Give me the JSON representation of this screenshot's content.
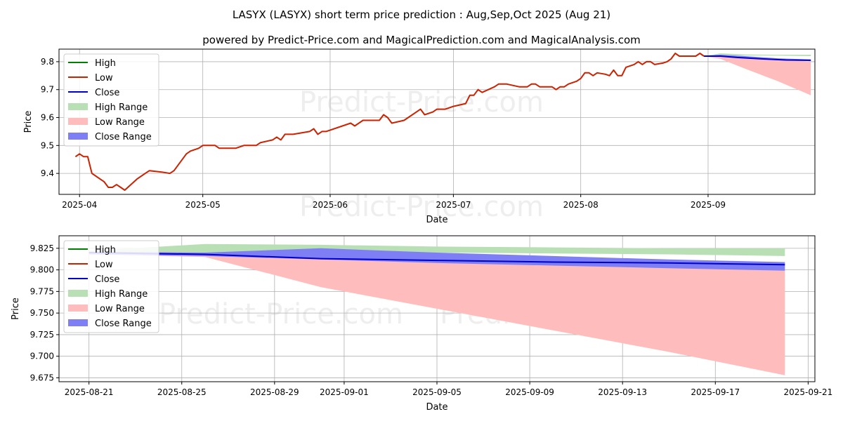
{
  "page": {
    "title": "LASYX (LASYX) short term price prediction : Aug,Sep,Oct 2025 (Aug 21)",
    "subtitle": "powered by Predict-Price.com and MagicalPrediction.com and MagicalAnalysis.com",
    "watermark": "Predict-Price.com"
  },
  "colors": {
    "high": "#008000",
    "low": "#cc2200",
    "close": "#0000cc",
    "high_range": "#b9dfb4",
    "low_range": "#ffbcbc",
    "close_range": "#7f7ff5",
    "grid": "#b0b0b0",
    "watermark": "#eeeeee"
  },
  "chart_data": [
    {
      "type": "line",
      "xlabel": "Date",
      "ylabel": "Price",
      "xlim": [
        "2025-03-27",
        "2025-09-27"
      ],
      "ylim": [
        9.325,
        9.845
      ],
      "grid": true,
      "legend_position": "top-left",
      "x_ticks": [
        "2025-04-01",
        "2025-05-01",
        "2025-06-01",
        "2025-07-01",
        "2025-08-01",
        "2025-09-01"
      ],
      "x_tick_labels": [
        "2025-04",
        "2025-05",
        "2025-06",
        "2025-07",
        "2025-08",
        "2025-09"
      ],
      "y_ticks": [
        9.4,
        9.5,
        9.6,
        9.7,
        9.8
      ],
      "y_tick_labels": [
        "9.4",
        "9.5",
        "9.6",
        "9.7",
        "9.8"
      ],
      "legend": [
        "High",
        "Low",
        "Close",
        "High Range",
        "Low Range",
        "Close Range"
      ],
      "series": [
        {
          "name": "Low",
          "style": "line",
          "points": [
            [
              "2025-03-31",
              9.46
            ],
            [
              "2025-04-01",
              9.47
            ],
            [
              "2025-04-02",
              9.46
            ],
            [
              "2025-04-03",
              9.46
            ],
            [
              "2025-04-04",
              9.4
            ],
            [
              "2025-04-07",
              9.37
            ],
            [
              "2025-04-08",
              9.35
            ],
            [
              "2025-04-09",
              9.35
            ],
            [
              "2025-04-10",
              9.36
            ],
            [
              "2025-04-11",
              9.35
            ],
            [
              "2025-04-12",
              9.34
            ],
            [
              "2025-04-15",
              9.38
            ],
            [
              "2025-04-17",
              9.4
            ],
            [
              "2025-04-18",
              9.41
            ],
            [
              "2025-04-21",
              9.405
            ],
            [
              "2025-04-23",
              9.4
            ],
            [
              "2025-04-24",
              9.41
            ],
            [
              "2025-04-25",
              9.43
            ],
            [
              "2025-04-27",
              9.47
            ],
            [
              "2025-04-28",
              9.48
            ],
            [
              "2025-04-30",
              9.49
            ],
            [
              "2025-05-01",
              9.5
            ],
            [
              "2025-05-04",
              9.5
            ],
            [
              "2025-05-05",
              9.49
            ],
            [
              "2025-05-09",
              9.49
            ],
            [
              "2025-05-11",
              9.5
            ],
            [
              "2025-05-14",
              9.5
            ],
            [
              "2025-05-15",
              9.51
            ],
            [
              "2025-05-18",
              9.52
            ],
            [
              "2025-05-19",
              9.53
            ],
            [
              "2025-05-20",
              9.52
            ],
            [
              "2025-05-21",
              9.54
            ],
            [
              "2025-05-23",
              9.54
            ],
            [
              "2025-05-27",
              9.55
            ],
            [
              "2025-05-28",
              9.56
            ],
            [
              "2025-05-29",
              9.54
            ],
            [
              "2025-05-30",
              9.55
            ],
            [
              "2025-05-31",
              9.55
            ],
            [
              "2025-06-06",
              9.58
            ],
            [
              "2025-06-07",
              9.57
            ],
            [
              "2025-06-09",
              9.59
            ],
            [
              "2025-06-13",
              9.59
            ],
            [
              "2025-06-14",
              9.61
            ],
            [
              "2025-06-15",
              9.6
            ],
            [
              "2025-06-16",
              9.58
            ],
            [
              "2025-06-19",
              9.59
            ],
            [
              "2025-06-20",
              9.6
            ],
            [
              "2025-06-22",
              9.62
            ],
            [
              "2025-06-23",
              9.63
            ],
            [
              "2025-06-24",
              9.61
            ],
            [
              "2025-06-26",
              9.62
            ],
            [
              "2025-06-27",
              9.63
            ],
            [
              "2025-06-29",
              9.63
            ],
            [
              "2025-07-01",
              9.64
            ],
            [
              "2025-07-04",
              9.65
            ],
            [
              "2025-07-05",
              9.68
            ],
            [
              "2025-07-06",
              9.68
            ],
            [
              "2025-07-07",
              9.7
            ],
            [
              "2025-07-08",
              9.69
            ],
            [
              "2025-07-11",
              9.71
            ],
            [
              "2025-07-12",
              9.72
            ],
            [
              "2025-07-14",
              9.72
            ],
            [
              "2025-07-17",
              9.71
            ],
            [
              "2025-07-19",
              9.71
            ],
            [
              "2025-07-20",
              9.72
            ],
            [
              "2025-07-21",
              9.72
            ],
            [
              "2025-07-22",
              9.71
            ],
            [
              "2025-07-25",
              9.71
            ],
            [
              "2025-07-26",
              9.7
            ],
            [
              "2025-07-27",
              9.71
            ],
            [
              "2025-07-28",
              9.71
            ],
            [
              "2025-07-29",
              9.72
            ],
            [
              "2025-07-31",
              9.73
            ],
            [
              "2025-08-01",
              9.74
            ],
            [
              "2025-08-02",
              9.76
            ],
            [
              "2025-08-03",
              9.76
            ],
            [
              "2025-08-04",
              9.75
            ],
            [
              "2025-08-05",
              9.76
            ],
            [
              "2025-08-07",
              9.755
            ],
            [
              "2025-08-08",
              9.75
            ],
            [
              "2025-08-09",
              9.77
            ],
            [
              "2025-08-10",
              9.75
            ],
            [
              "2025-08-11",
              9.75
            ],
            [
              "2025-08-12",
              9.78
            ],
            [
              "2025-08-14",
              9.79
            ],
            [
              "2025-08-15",
              9.8
            ],
            [
              "2025-08-16",
              9.79
            ],
            [
              "2025-08-17",
              9.8
            ],
            [
              "2025-08-18",
              9.8
            ],
            [
              "2025-08-19",
              9.79
            ],
            [
              "2025-08-21",
              9.795
            ],
            [
              "2025-08-22",
              9.8
            ],
            [
              "2025-08-23",
              9.81
            ],
            [
              "2025-08-24",
              9.83
            ],
            [
              "2025-08-25",
              9.82
            ],
            [
              "2025-08-29",
              9.82
            ],
            [
              "2025-08-30",
              9.83
            ],
            [
              "2025-08-31",
              9.82
            ]
          ]
        },
        {
          "name": "Close",
          "style": "line",
          "points": [
            [
              "2025-08-31",
              9.82
            ],
            [
              "2025-09-04",
              9.82
            ],
            [
              "2025-09-08",
              9.815
            ],
            [
              "2025-09-14",
              9.81
            ],
            [
              "2025-09-20",
              9.806
            ],
            [
              "2025-09-26",
              9.805
            ]
          ]
        },
        {
          "name": "High Range",
          "style": "band",
          "points": [
            [
              "2025-08-31",
              9.82,
              9.82
            ],
            [
              "2025-09-04",
              9.822,
              9.83
            ],
            [
              "2025-09-10",
              9.822,
              9.826
            ],
            [
              "2025-09-18",
              9.822,
              9.825
            ],
            [
              "2025-09-26",
              9.82,
              9.825
            ]
          ]
        },
        {
          "name": "Low Range",
          "style": "band",
          "points": [
            [
              "2025-08-31",
              9.82,
              9.82
            ],
            [
              "2025-09-04",
              9.81,
              9.82
            ],
            [
              "2025-09-10",
              9.775,
              9.815
            ],
            [
              "2025-09-18",
              9.73,
              9.81
            ],
            [
              "2025-09-26",
              9.68,
              9.8
            ]
          ]
        },
        {
          "name": "Close Range",
          "style": "band",
          "points": [
            [
              "2025-08-31",
              9.82,
              9.82
            ],
            [
              "2025-09-04",
              9.82,
              9.825
            ],
            [
              "2025-09-10",
              9.812,
              9.82
            ],
            [
              "2025-09-18",
              9.805,
              9.812
            ],
            [
              "2025-09-26",
              9.802,
              9.808
            ]
          ]
        }
      ]
    },
    {
      "type": "line",
      "xlabel": "Date",
      "ylabel": "Price",
      "xlim": [
        "2025-08-19 17:00",
        "2025-09-21 07:00"
      ],
      "ylim": [
        9.6705,
        9.8395
      ],
      "grid": true,
      "legend_position": "top-left",
      "x_ticks": [
        "2025-08-21",
        "2025-08-25",
        "2025-08-29",
        "2025-09-01",
        "2025-09-05",
        "2025-09-09",
        "2025-09-13",
        "2025-09-17",
        "2025-09-21"
      ],
      "x_tick_labels": [
        "2025-08-21",
        "2025-08-25",
        "2025-08-29",
        "2025-09-01",
        "2025-09-05",
        "2025-09-09",
        "2025-09-13",
        "2025-09-17",
        "2025-09-21"
      ],
      "y_ticks": [
        9.675,
        9.7,
        9.725,
        9.75,
        9.775,
        9.8,
        9.825
      ],
      "y_tick_labels": [
        "9.675",
        "9.700",
        "9.725",
        "9.750",
        "9.775",
        "9.800",
        "9.825"
      ],
      "legend": [
        "High",
        "Low",
        "Close",
        "High Range",
        "Low Range",
        "Close Range"
      ],
      "series": [
        {
          "name": "Close",
          "style": "line",
          "points": [
            [
              "2025-08-21",
              9.82
            ],
            [
              "2025-08-26",
              9.818
            ],
            [
              "2025-08-31",
              9.813
            ],
            [
              "2025-09-05",
              9.811
            ],
            [
              "2025-09-10",
              9.809
            ],
            [
              "2025-09-15",
              9.808
            ],
            [
              "2025-09-20",
              9.806
            ]
          ]
        },
        {
          "name": "High Range",
          "style": "band",
          "points": [
            [
              "2025-08-21",
              9.818,
              9.822
            ],
            [
              "2025-08-26",
              9.82,
              9.83
            ],
            [
              "2025-08-31",
              9.82,
              9.829
            ],
            [
              "2025-09-05",
              9.82,
              9.827
            ],
            [
              "2025-09-10",
              9.819,
              9.826
            ],
            [
              "2025-09-15",
              9.818,
              9.825
            ],
            [
              "2025-09-20",
              9.816,
              9.825
            ]
          ]
        },
        {
          "name": "Low Range",
          "style": "band",
          "points": [
            [
              "2025-08-21",
              9.818,
              9.822
            ],
            [
              "2025-08-26",
              9.815,
              9.82
            ],
            [
              "2025-08-31",
              9.78,
              9.815
            ],
            [
              "2025-09-05",
              9.755,
              9.81
            ],
            [
              "2025-09-10",
              9.73,
              9.807
            ],
            [
              "2025-09-15",
              9.705,
              9.803
            ],
            [
              "2025-09-20",
              9.678,
              9.8
            ]
          ]
        },
        {
          "name": "Close Range",
          "style": "band",
          "points": [
            [
              "2025-08-21",
              9.818,
              9.821
            ],
            [
              "2025-08-26",
              9.816,
              9.82
            ],
            [
              "2025-08-31",
              9.812,
              9.825
            ],
            [
              "2025-09-05",
              9.808,
              9.82
            ],
            [
              "2025-09-10",
              9.805,
              9.816
            ],
            [
              "2025-09-15",
              9.802,
              9.812
            ],
            [
              "2025-09-20",
              9.799,
              9.809
            ]
          ]
        }
      ]
    }
  ]
}
